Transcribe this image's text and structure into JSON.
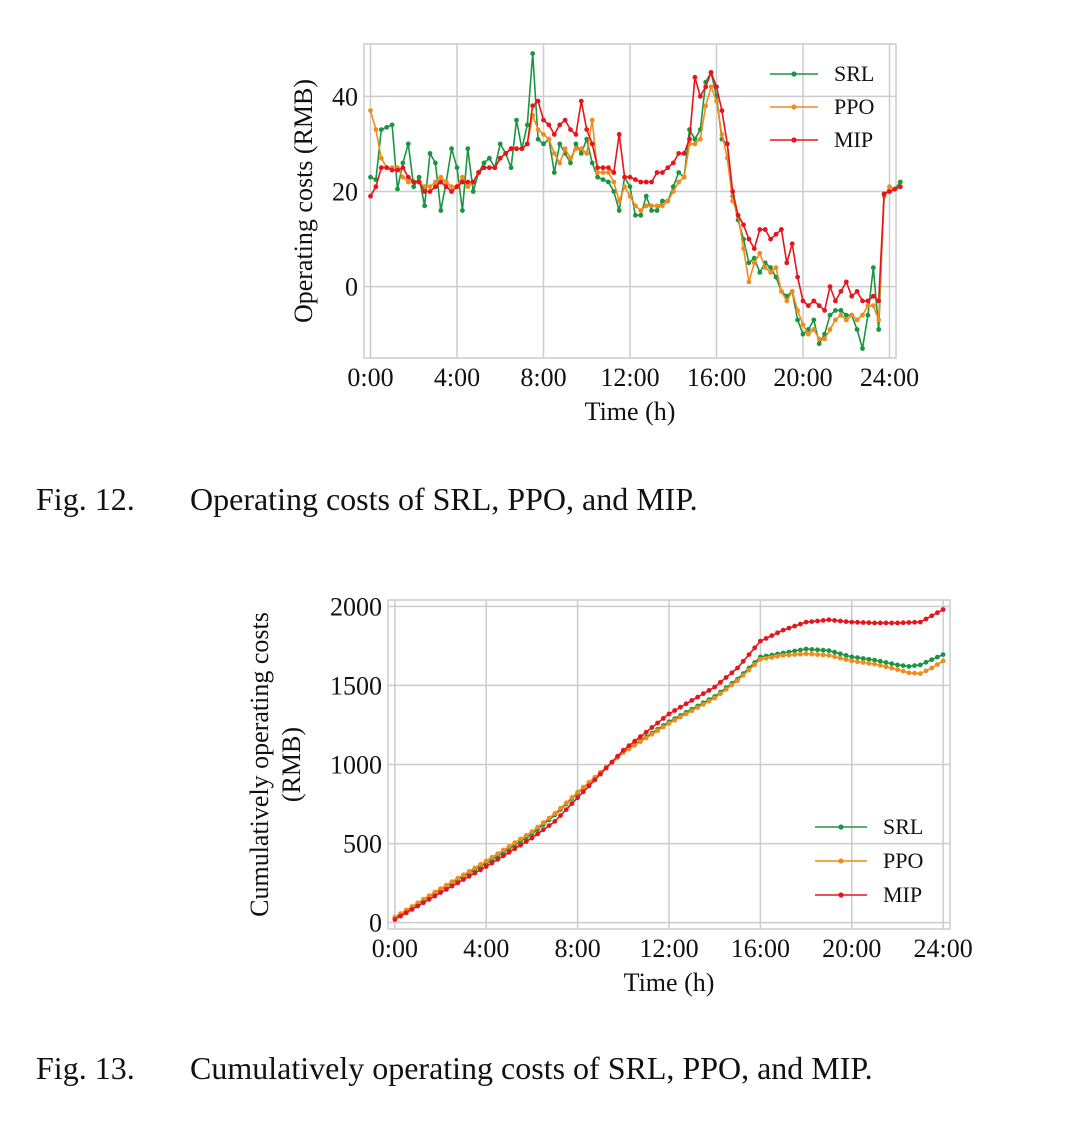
{
  "figures": [
    {
      "caption_label": "Fig. 12.",
      "caption_text": "Operating costs of SRL, PPO, and MIP."
    },
    {
      "caption_label": "Fig. 13.",
      "caption_text": "Cumulatively operating costs of SRL, PPO, and MIP."
    }
  ],
  "chart_data": [
    {
      "type": "line",
      "title": "",
      "xlabel": "Time (h)",
      "ylabel": "Operating costs (RMB)",
      "x_ticks": [
        "0:00",
        "4:00",
        "8:00",
        "12:00",
        "16:00",
        "20:00",
        "24:00"
      ],
      "y_ticks": [
        "0",
        "20",
        "40"
      ],
      "x_tick_values": [
        0,
        4,
        8,
        12,
        16,
        20,
        24
      ],
      "y_tick_values": [
        0,
        20,
        40
      ],
      "xlim": [
        -0.3,
        24.3
      ],
      "ylim": [
        -15,
        51
      ],
      "x_step_hours": 0.25,
      "legend_position": "top-right",
      "grid": true,
      "series": [
        {
          "name": "SRL",
          "color": "#1a9641",
          "values": [
            23,
            22.5,
            33,
            33.5,
            34,
            20.5,
            26,
            30,
            21,
            23,
            17,
            28,
            26,
            16,
            22,
            29,
            25,
            16,
            29,
            20,
            24,
            26,
            27,
            25,
            30,
            28,
            25,
            35,
            29,
            34,
            49,
            31,
            30,
            31,
            24,
            30,
            28,
            26,
            30,
            28,
            31,
            26,
            23,
            22.5,
            22,
            20,
            16,
            23,
            21,
            15,
            15,
            19,
            16,
            16,
            18,
            18,
            21,
            24,
            23,
            33,
            31,
            33,
            43,
            45,
            40,
            31,
            30,
            19,
            14,
            10,
            5,
            6,
            3,
            5,
            4,
            2,
            -1,
            -2,
            -1,
            -7,
            -10,
            -9,
            -7,
            -12,
            -10,
            -6,
            -5,
            -5,
            -6,
            -6,
            -9,
            -13,
            -6,
            4,
            -9,
            19.5,
            20,
            20.5,
            22
          ]
        },
        {
          "name": "PPO",
          "color": "#f08c1e",
          "values": [
            37,
            33,
            27,
            25,
            25,
            25,
            23,
            22,
            22,
            22,
            21,
            21,
            22,
            23,
            22,
            21,
            21,
            23,
            21,
            22,
            24,
            25,
            25,
            25,
            27,
            28,
            29,
            29,
            29,
            30,
            36,
            33,
            32,
            31,
            28,
            26,
            29,
            27,
            29,
            29,
            28,
            35,
            24,
            24,
            24,
            22,
            18,
            21,
            19,
            17,
            16,
            17,
            17,
            17,
            17,
            18,
            20,
            22,
            23,
            30,
            30,
            31,
            38,
            42,
            39,
            32,
            27,
            18,
            15,
            8,
            1,
            5,
            7,
            4,
            3,
            4,
            -1,
            -3,
            -1,
            -5,
            -8,
            -10,
            -9,
            -11,
            -11,
            -9,
            -7,
            -6,
            -7,
            -6,
            -7,
            -6,
            -4,
            -4,
            -7,
            19,
            21,
            20.5,
            21
          ]
        },
        {
          "name": "MIP",
          "color": "#e8141c",
          "values": [
            19,
            21,
            25,
            25,
            24.5,
            24.5,
            25,
            23,
            22,
            22,
            20,
            20,
            21,
            22,
            21,
            20,
            21,
            22,
            22,
            22,
            24,
            25,
            25,
            25,
            27,
            28,
            29,
            29,
            29,
            30,
            38,
            39,
            35,
            34,
            32,
            34,
            35,
            33,
            32,
            39,
            33,
            30,
            25,
            25,
            25,
            24,
            32,
            23,
            23,
            22.5,
            22,
            22,
            22,
            24,
            24,
            25,
            26,
            28,
            28,
            31,
            44,
            40,
            42,
            45,
            42,
            37,
            30,
            20,
            15,
            13,
            10,
            8,
            12,
            12,
            10,
            11,
            12,
            5,
            9,
            2,
            -3,
            -4,
            -3,
            -4,
            -5,
            0,
            -3,
            -1,
            1,
            -2,
            -1,
            -3,
            -3,
            -2,
            -3,
            19.5,
            20,
            20.5,
            21
          ]
        }
      ]
    },
    {
      "type": "line",
      "title": "",
      "xlabel": "Time (h)",
      "ylabel": "Cumulatively operating costs (RMB)",
      "ylabel_lines": [
        "Cumulatively operating costs",
        "(RMB)"
      ],
      "x_ticks": [
        "0:00",
        "4:00",
        "8:00",
        "12:00",
        "16:00",
        "20:00",
        "24:00"
      ],
      "y_ticks": [
        "0",
        "500",
        "1000",
        "1500",
        "2000"
      ],
      "x_tick_values": [
        0,
        4,
        8,
        12,
        16,
        20,
        24
      ],
      "y_tick_values": [
        0,
        500,
        1000,
        1500,
        2000
      ],
      "xlim": [
        -0.3,
        24.3
      ],
      "ylim": [
        -40,
        2040
      ],
      "x_step_hours": 0.25,
      "legend_position": "lower-right",
      "grid": true,
      "series": [
        {
          "name": "SRL",
          "color": "#1a9641",
          "anchors": [
            [
              0,
              30
            ],
            [
              2,
              210
            ],
            [
              4,
              375
            ],
            [
              6,
              560
            ],
            [
              7,
              680
            ],
            [
              8,
              820
            ],
            [
              10,
              1080
            ],
            [
              12,
              1270
            ],
            [
              14,
              1430
            ],
            [
              15,
              1540
            ],
            [
              16,
              1680
            ],
            [
              18,
              1730
            ],
            [
              19,
              1720
            ],
            [
              20,
              1680
            ],
            [
              21,
              1660
            ],
            [
              22,
              1630
            ],
            [
              22.5,
              1620
            ],
            [
              23,
              1630
            ],
            [
              24,
              1695
            ]
          ]
        },
        {
          "name": "PPO",
          "color": "#f08c1e",
          "anchors": [
            [
              0,
              35
            ],
            [
              2,
              215
            ],
            [
              4,
              390
            ],
            [
              6,
              575
            ],
            [
              7,
              690
            ],
            [
              8,
              825
            ],
            [
              10,
              1075
            ],
            [
              12,
              1260
            ],
            [
              14,
              1420
            ],
            [
              15,
              1530
            ],
            [
              16,
              1665
            ],
            [
              17,
              1690
            ],
            [
              18,
              1700
            ],
            [
              19,
              1690
            ],
            [
              20,
              1655
            ],
            [
              21,
              1635
            ],
            [
              22,
              1600
            ],
            [
              22.5,
              1580
            ],
            [
              23,
              1575
            ],
            [
              23.5,
              1610
            ],
            [
              24,
              1655
            ]
          ]
        },
        {
          "name": "MIP",
          "color": "#e8141c",
          "anchors": [
            [
              0,
              20
            ],
            [
              2,
              190
            ],
            [
              4,
              355
            ],
            [
              6,
              535
            ],
            [
              7,
              640
            ],
            [
              8,
              790
            ],
            [
              10,
              1090
            ],
            [
              12,
              1320
            ],
            [
              14,
              1490
            ],
            [
              15,
              1610
            ],
            [
              16,
              1780
            ],
            [
              17,
              1850
            ],
            [
              18,
              1900
            ],
            [
              19,
              1915
            ],
            [
              20,
              1900
            ],
            [
              21,
              1895
            ],
            [
              22,
              1895
            ],
            [
              23,
              1900
            ],
            [
              24,
              1980
            ]
          ]
        }
      ]
    }
  ]
}
